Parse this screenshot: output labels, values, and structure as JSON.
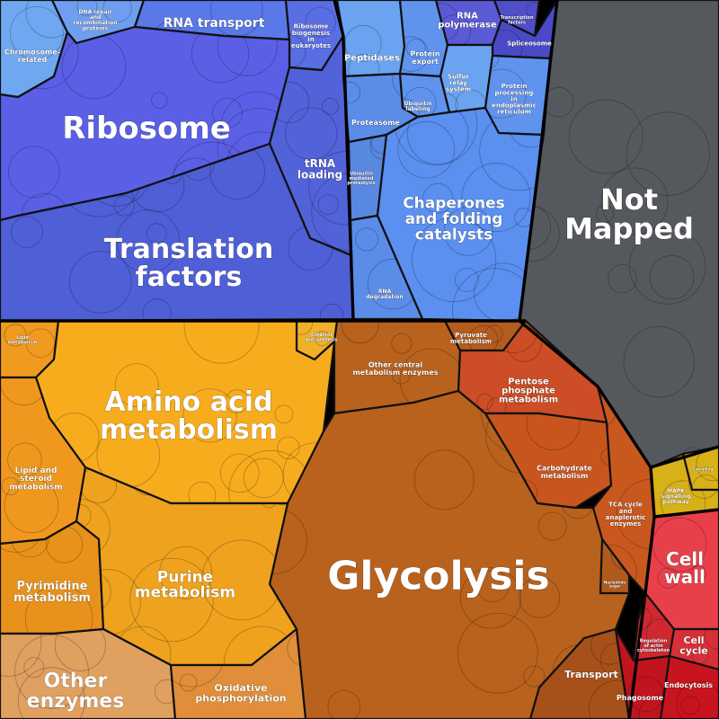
{
  "colors": {
    "genetic": "#5a5fe0",
    "folding": "#5b8fee",
    "metabolism": "#f0a020",
    "central": "#b8621e",
    "not_mapped": "#55585c",
    "cellular": "#e0343e",
    "signal": "#d8b018",
    "outline": "#111111"
  },
  "cells": [
    {
      "name": "cell-chromosome-related",
      "labels": [
        "Chromosome-",
        "related"
      ],
      "color": "#6fa8f0",
      "size": 8
    },
    {
      "name": "cell-dna-repair",
      "labels": [
        "DNA repair",
        "and",
        "recombination",
        "proteins"
      ],
      "color": "#6f9ef0",
      "size": 6
    },
    {
      "name": "cell-rna-transport",
      "labels": [
        "RNA transport"
      ],
      "color": "#5a78e8",
      "size": 14
    },
    {
      "name": "cell-ribosome-biogenesis",
      "labels": [
        "Ribosome",
        "biogenesis",
        "in",
        "eukaryotes"
      ],
      "color": "#5a6ee4",
      "size": 7
    },
    {
      "name": "cell-ribosome",
      "labels": [
        "Ribosome"
      ],
      "color": "#5a5fe6",
      "size": 34
    },
    {
      "name": "cell-trna-loading",
      "labels": [
        "tRNA",
        "loading"
      ],
      "color": "#5262d8",
      "size": 12
    },
    {
      "name": "cell-translation-factors",
      "labels": [
        "Translation",
        "factors"
      ],
      "color": "#4f5fd6",
      "size": 30
    },
    {
      "name": "cell-peptidases",
      "labels": [
        "Peptidases"
      ],
      "color": "#6aa3f0",
      "size": 10
    },
    {
      "name": "cell-protein-export",
      "labels": [
        "Protein",
        "export"
      ],
      "color": "#5f93ee",
      "size": 8
    },
    {
      "name": "cell-rna-polymerase",
      "labels": [
        "RNA",
        "polymerase"
      ],
      "color": "#5a5ad6",
      "size": 10
    },
    {
      "name": "cell-transcription-factors",
      "labels": [
        "Transcription",
        "factors"
      ],
      "color": "#4f4fc8",
      "size": 5
    },
    {
      "name": "cell-spliceosome",
      "labels": [
        "Spliceosome"
      ],
      "color": "#4a4ac8",
      "size": 7
    },
    {
      "name": "cell-sulfur-relay",
      "labels": [
        "Sulfur",
        "relay",
        "system"
      ],
      "color": "#6aa3f0",
      "size": 7
    },
    {
      "name": "cell-ubiquitin-labeling",
      "labels": [
        "Ubiquitin",
        "labeling"
      ],
      "color": "#5f93ee",
      "size": 6
    },
    {
      "name": "cell-protein-processing-er",
      "labels": [
        "Protein",
        "processing",
        "in",
        "endoplasmic",
        "reticulum"
      ],
      "color": "#5f93ee",
      "size": 7
    },
    {
      "name": "cell-proteasome",
      "labels": [
        "Proteasome"
      ],
      "color": "#5a8ce8",
      "size": 8
    },
    {
      "name": "cell-ubiquitin-mediated-proteolysis",
      "labels": [
        "Ubiquitin",
        "mediated",
        "proteolysis"
      ],
      "color": "#5888e0",
      "size": 5
    },
    {
      "name": "cell-chaperones",
      "labels": [
        "Chaperones",
        "and folding",
        "catalysts"
      ],
      "color": "#5b8ff0",
      "size": 17
    },
    {
      "name": "cell-rna-degradation",
      "labels": [
        "RNA",
        "degradation"
      ],
      "color": "#5a8ce8",
      "size": 6
    },
    {
      "name": "cell-not-mapped",
      "labels": [
        "Not",
        "Mapped"
      ],
      "color": "#55585c",
      "size": 32
    },
    {
      "name": "cell-lipid-small",
      "labels": [
        "Lipid",
        "metabolism"
      ],
      "color": "#f09a20",
      "size": 5
    },
    {
      "name": "cell-cofactor-vitamin",
      "labels": [
        "Cofactor",
        "biosynthesis"
      ],
      "color": "#f0b028",
      "size": 5
    },
    {
      "name": "cell-amino-acid-metabolism",
      "labels": [
        "Amino acid",
        "metabolism"
      ],
      "color": "#f7ac1e",
      "size": 30
    },
    {
      "name": "cell-other-central",
      "labels": [
        "Other central",
        "metabolism enzymes"
      ],
      "color": "#b8621e",
      "size": 8
    },
    {
      "name": "cell-pyruvate",
      "labels": [
        "Pyruvate",
        "metabolism"
      ],
      "color": "#b35c1e",
      "size": 7
    },
    {
      "name": "cell-pentose-phosphate",
      "labels": [
        "Pentose",
        "phosphate",
        "metabolism"
      ],
      "color": "#cc4d26",
      "size": 10
    },
    {
      "name": "cell-lipid-steroid",
      "labels": [
        "Lipid and",
        "steroid",
        "metabolism"
      ],
      "color": "#f0981e",
      "size": 9
    },
    {
      "name": "cell-carbohydrate",
      "labels": [
        "Carbohydrate",
        "metabolism"
      ],
      "color": "#c8551e",
      "size": 8
    },
    {
      "name": "cell-tca-cycle",
      "labels": [
        "TCA cycle",
        "and",
        "anaplerotic",
        "enzymes"
      ],
      "color": "#c8581e",
      "size": 7
    },
    {
      "name": "cell-glycolysis",
      "labels": [
        "Glycolysis"
      ],
      "color": "#b8621e",
      "size": 44
    },
    {
      "name": "cell-pyrimidine",
      "labels": [
        "Pyrimidine",
        "metabolism"
      ],
      "color": "#e8921c",
      "size": 13
    },
    {
      "name": "cell-purine",
      "labels": [
        "Purine",
        "metabolism"
      ],
      "color": "#eea21e",
      "size": 17
    },
    {
      "name": "cell-other-enzymes",
      "labels": [
        "Other",
        "enzymes"
      ],
      "color": "#e0a060",
      "size": 22
    },
    {
      "name": "cell-oxidative-phosphorylation",
      "labels": [
        "Oxidative",
        "phosphorylation"
      ],
      "color": "#e08e3a",
      "size": 11
    },
    {
      "name": "cell-nucleotide-sugar",
      "labels": [
        "Nucleotide",
        "sugar"
      ],
      "color": "#b05a1c",
      "size": 4
    },
    {
      "name": "cell-transport",
      "labels": [
        "Transport"
      ],
      "color": "#a6501a",
      "size": 11
    },
    {
      "name": "cell-signal-small",
      "labels": [
        "Signalling"
      ],
      "color": "#d8b018",
      "size": 4
    },
    {
      "name": "cell-mapk",
      "labels": [
        "MAPK",
        "signalling",
        "pathway"
      ],
      "color": "#d8b018",
      "size": 6
    },
    {
      "name": "cell-cell-wall",
      "labels": [
        "Cell",
        "wall"
      ],
      "color": "#e8404a",
      "size": 20
    },
    {
      "name": "cell-actin",
      "labels": [
        "Regulation",
        "of actin",
        "cytoskeleton"
      ],
      "color": "#d02830",
      "size": 5
    },
    {
      "name": "cell-cell-cycle",
      "labels": [
        "Cell",
        "cycle"
      ],
      "color": "#d83038",
      "size": 11
    },
    {
      "name": "cell-phagosome",
      "labels": [
        "Phagosome"
      ],
      "color": "#c0141e",
      "size": 8
    },
    {
      "name": "cell-endocytosis",
      "labels": [
        "Endocytosis"
      ],
      "color": "#c8141e",
      "size": 8
    }
  ]
}
